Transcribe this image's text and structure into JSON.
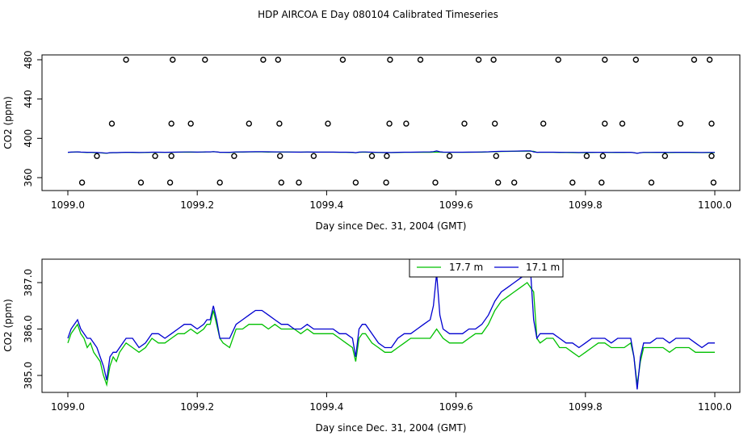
{
  "chart_data": [
    {
      "type": "scatter",
      "title": "HDP AIRCOA E  Day 080104  Calibrated Timeseries",
      "xlabel": "Day since Dec. 31, 2004 (GMT)",
      "ylabel": "CO2 (ppm)",
      "xlim": [
        1099.0,
        1100.0
      ],
      "ylim": [
        348,
        485
      ],
      "xticks": [
        1099.0,
        1099.2,
        1099.4,
        1099.6,
        1099.8,
        1100.0
      ],
      "xtick_labels": [
        "1099.0",
        "1099.2",
        "1099.4",
        "1099.6",
        "1099.8",
        "1100.0"
      ],
      "yticks": [
        360,
        400,
        440,
        480
      ],
      "ytick_labels": [
        "360",
        "400",
        "440",
        "480"
      ],
      "calibration_points": {
        "name": "calibration standards",
        "marker": "open circle",
        "points": [
          [
            1099.09,
            480
          ],
          [
            1099.162,
            480
          ],
          [
            1099.212,
            480
          ],
          [
            1099.302,
            480
          ],
          [
            1099.325,
            480
          ],
          [
            1099.425,
            480
          ],
          [
            1099.498,
            480
          ],
          [
            1099.545,
            480
          ],
          [
            1099.635,
            480
          ],
          [
            1099.658,
            480
          ],
          [
            1099.758,
            480
          ],
          [
            1099.83,
            480
          ],
          [
            1099.878,
            480
          ],
          [
            1099.968,
            480
          ],
          [
            1099.992,
            480
          ],
          [
            1099.068,
            415
          ],
          [
            1099.16,
            415
          ],
          [
            1099.19,
            415
          ],
          [
            1099.28,
            415
          ],
          [
            1099.327,
            415
          ],
          [
            1099.402,
            415
          ],
          [
            1099.497,
            415
          ],
          [
            1099.523,
            415
          ],
          [
            1099.613,
            415
          ],
          [
            1099.66,
            415
          ],
          [
            1099.735,
            415
          ],
          [
            1099.83,
            415
          ],
          [
            1099.857,
            415
          ],
          [
            1099.947,
            415
          ],
          [
            1099.995,
            415
          ],
          [
            1099.045,
            382
          ],
          [
            1099.135,
            382
          ],
          [
            1099.16,
            382
          ],
          [
            1099.257,
            382
          ],
          [
            1099.328,
            382
          ],
          [
            1099.38,
            382
          ],
          [
            1099.47,
            382
          ],
          [
            1099.493,
            382
          ],
          [
            1099.59,
            382
          ],
          [
            1099.662,
            382
          ],
          [
            1099.712,
            382
          ],
          [
            1099.802,
            382
          ],
          [
            1099.827,
            382
          ],
          [
            1099.923,
            382
          ],
          [
            1099.995,
            382
          ],
          [
            1099.022,
            355
          ],
          [
            1099.113,
            355
          ],
          [
            1099.158,
            355
          ],
          [
            1099.235,
            355
          ],
          [
            1099.33,
            355
          ],
          [
            1099.357,
            355
          ],
          [
            1099.445,
            355
          ],
          [
            1099.492,
            355
          ],
          [
            1099.568,
            355
          ],
          [
            1099.665,
            355
          ],
          [
            1099.69,
            355
          ],
          [
            1099.78,
            355
          ],
          [
            1099.825,
            355
          ],
          [
            1099.902,
            355
          ],
          [
            1099.998,
            355
          ]
        ]
      },
      "series": [
        {
          "name": "17.7 m",
          "color": "#00c000",
          "y_approx": 385.5
        },
        {
          "name": "17.1 m",
          "color": "#0000d0",
          "y_approx": 385.6
        }
      ]
    },
    {
      "type": "line",
      "title": "",
      "xlabel": "Day since Dec. 31, 2004 (GMT)",
      "ylabel": "CO2 (ppm)",
      "xlim": [
        1099.0,
        1100.0
      ],
      "ylim": [
        384.7,
        387.4
      ],
      "xticks": [
        1099.0,
        1099.2,
        1099.4,
        1099.6,
        1099.8,
        1100.0
      ],
      "xtick_labels": [
        "1099.0",
        "1099.2",
        "1099.4",
        "1099.6",
        "1099.8",
        "1100.0"
      ],
      "yticks": [
        385.0,
        386.0,
        387.0
      ],
      "ytick_labels": [
        "385.0",
        "386.0",
        "387.0"
      ],
      "legend_position": "top-center",
      "x": [
        1099.0,
        1099.005,
        1099.01,
        1099.015,
        1099.02,
        1099.025,
        1099.03,
        1099.035,
        1099.04,
        1099.045,
        1099.05,
        1099.055,
        1099.06,
        1099.065,
        1099.07,
        1099.075,
        1099.08,
        1099.09,
        1099.1,
        1099.11,
        1099.12,
        1099.13,
        1099.14,
        1099.15,
        1099.16,
        1099.17,
        1099.18,
        1099.19,
        1099.2,
        1099.21,
        1099.215,
        1099.22,
        1099.225,
        1099.23,
        1099.235,
        1099.24,
        1099.25,
        1099.26,
        1099.27,
        1099.28,
        1099.29,
        1099.3,
        1099.31,
        1099.32,
        1099.33,
        1099.34,
        1099.35,
        1099.36,
        1099.37,
        1099.38,
        1099.39,
        1099.4,
        1099.41,
        1099.42,
        1099.43,
        1099.44,
        1099.445,
        1099.45,
        1099.455,
        1099.46,
        1099.47,
        1099.48,
        1099.49,
        1099.5,
        1099.51,
        1099.52,
        1099.53,
        1099.54,
        1099.55,
        1099.56,
        1099.565,
        1099.57,
        1099.575,
        1099.58,
        1099.59,
        1099.6,
        1099.61,
        1099.62,
        1099.63,
        1099.64,
        1099.65,
        1099.66,
        1099.67,
        1099.68,
        1099.69,
        1099.7,
        1099.71,
        1099.715,
        1099.72,
        1099.725,
        1099.73,
        1099.74,
        1099.75,
        1099.76,
        1099.77,
        1099.78,
        1099.79,
        1099.8,
        1099.81,
        1099.82,
        1099.83,
        1099.84,
        1099.85,
        1099.86,
        1099.87,
        1099.875,
        1099.88,
        1099.885,
        1099.89,
        1099.9,
        1099.91,
        1099.92,
        1099.93,
        1099.94,
        1099.95,
        1099.96,
        1099.97,
        1099.98,
        1099.99,
        1100.0
      ],
      "series": [
        {
          "name": "17.7 m",
          "color": "#00c000",
          "values": [
            385.7,
            385.9,
            386.0,
            386.1,
            385.9,
            385.8,
            385.6,
            385.7,
            385.5,
            385.4,
            385.3,
            385.0,
            384.8,
            385.2,
            385.4,
            385.3,
            385.5,
            385.7,
            385.6,
            385.5,
            385.6,
            385.8,
            385.7,
            385.7,
            385.8,
            385.9,
            385.9,
            386.0,
            385.9,
            386.0,
            386.1,
            386.1,
            386.4,
            386.1,
            385.8,
            385.7,
            385.6,
            386.0,
            386.0,
            386.1,
            386.1,
            386.1,
            386.0,
            386.1,
            386.0,
            386.0,
            386.0,
            385.9,
            386.0,
            385.9,
            385.9,
            385.9,
            385.9,
            385.8,
            385.7,
            385.6,
            385.3,
            385.8,
            385.9,
            385.9,
            385.7,
            385.6,
            385.5,
            385.5,
            385.6,
            385.7,
            385.8,
            385.8,
            385.8,
            385.8,
            385.9,
            386.0,
            385.9,
            385.8,
            385.7,
            385.7,
            385.7,
            385.8,
            385.9,
            385.9,
            386.1,
            386.4,
            386.6,
            386.7,
            386.8,
            386.9,
            387.0,
            386.9,
            386.8,
            385.8,
            385.7,
            385.8,
            385.8,
            385.6,
            385.6,
            385.5,
            385.4,
            385.5,
            385.6,
            385.7,
            385.7,
            385.6,
            385.6,
            385.6,
            385.7,
            385.4,
            384.8,
            385.3,
            385.6,
            385.6,
            385.6,
            385.6,
            385.5,
            385.6,
            385.6,
            385.6,
            385.5,
            385.5,
            385.5,
            385.5
          ]
        },
        {
          "name": "17.1 m",
          "color": "#0000d0",
          "values": [
            385.8,
            386.0,
            386.1,
            386.2,
            386.0,
            385.9,
            385.8,
            385.8,
            385.7,
            385.6,
            385.4,
            385.2,
            384.9,
            385.4,
            385.5,
            385.5,
            385.6,
            385.8,
            385.8,
            385.6,
            385.7,
            385.9,
            385.9,
            385.8,
            385.9,
            386.0,
            386.1,
            386.1,
            386.0,
            386.1,
            386.2,
            386.2,
            386.5,
            386.2,
            385.8,
            385.8,
            385.8,
            386.1,
            386.2,
            386.3,
            386.4,
            386.4,
            386.3,
            386.2,
            386.1,
            386.1,
            386.0,
            386.0,
            386.1,
            386.0,
            386.0,
            386.0,
            386.0,
            385.9,
            385.9,
            385.8,
            385.4,
            386.0,
            386.1,
            386.1,
            385.9,
            385.7,
            385.6,
            385.6,
            385.8,
            385.9,
            385.9,
            386.0,
            386.1,
            386.2,
            386.5,
            387.2,
            386.3,
            386.0,
            385.9,
            385.9,
            385.9,
            386.0,
            386.0,
            386.1,
            386.3,
            386.6,
            386.8,
            386.9,
            387.0,
            387.1,
            387.2,
            387.3,
            386.2,
            385.8,
            385.9,
            385.9,
            385.9,
            385.8,
            385.7,
            385.7,
            385.6,
            385.7,
            385.8,
            385.8,
            385.8,
            385.7,
            385.8,
            385.8,
            385.8,
            385.4,
            384.7,
            385.4,
            385.7,
            385.7,
            385.8,
            385.8,
            385.7,
            385.8,
            385.8,
            385.8,
            385.7,
            385.6,
            385.7,
            385.7
          ]
        }
      ]
    }
  ]
}
